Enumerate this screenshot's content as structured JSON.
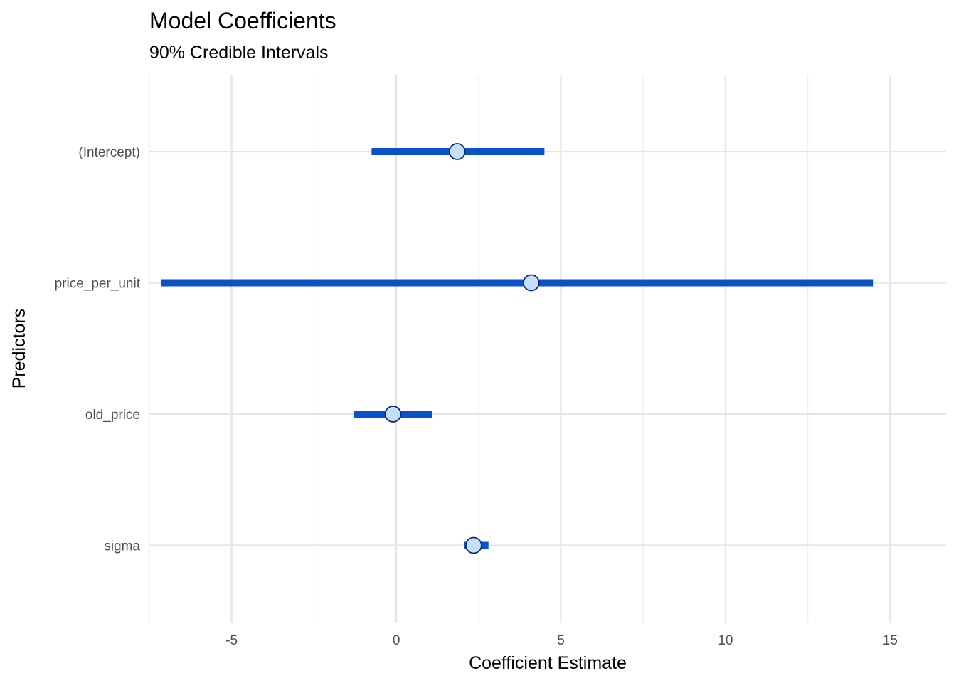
{
  "chart_data": {
    "type": "dot-interval",
    "title": "Model Coefficients",
    "subtitle": "90% Credible Intervals",
    "xlabel": "Coefficient Estimate",
    "ylabel": "Predictors",
    "xlim": [
      -7.5,
      16.7
    ],
    "x_ticks": [
      -5,
      0,
      5,
      10,
      15
    ],
    "x_tick_labels": [
      "-5",
      "0",
      "5",
      "10",
      "15"
    ],
    "x_minor_ticks": [
      -7.5,
      -2.5,
      2.5,
      7.5,
      12.5
    ],
    "categories": [
      "(Intercept)",
      "price_per_unit",
      "old_price",
      "sigma"
    ],
    "estimates": [
      1.85,
      4.1,
      -0.1,
      2.35
    ],
    "lower": [
      -0.75,
      -7.15,
      -1.3,
      2.05
    ],
    "upper": [
      4.5,
      14.5,
      1.1,
      2.8
    ],
    "colors": {
      "interval": "#0b52c9",
      "point_fill": "#c6dff8",
      "point_stroke": "#0a2a78"
    },
    "grid": true,
    "legend": "none"
  }
}
